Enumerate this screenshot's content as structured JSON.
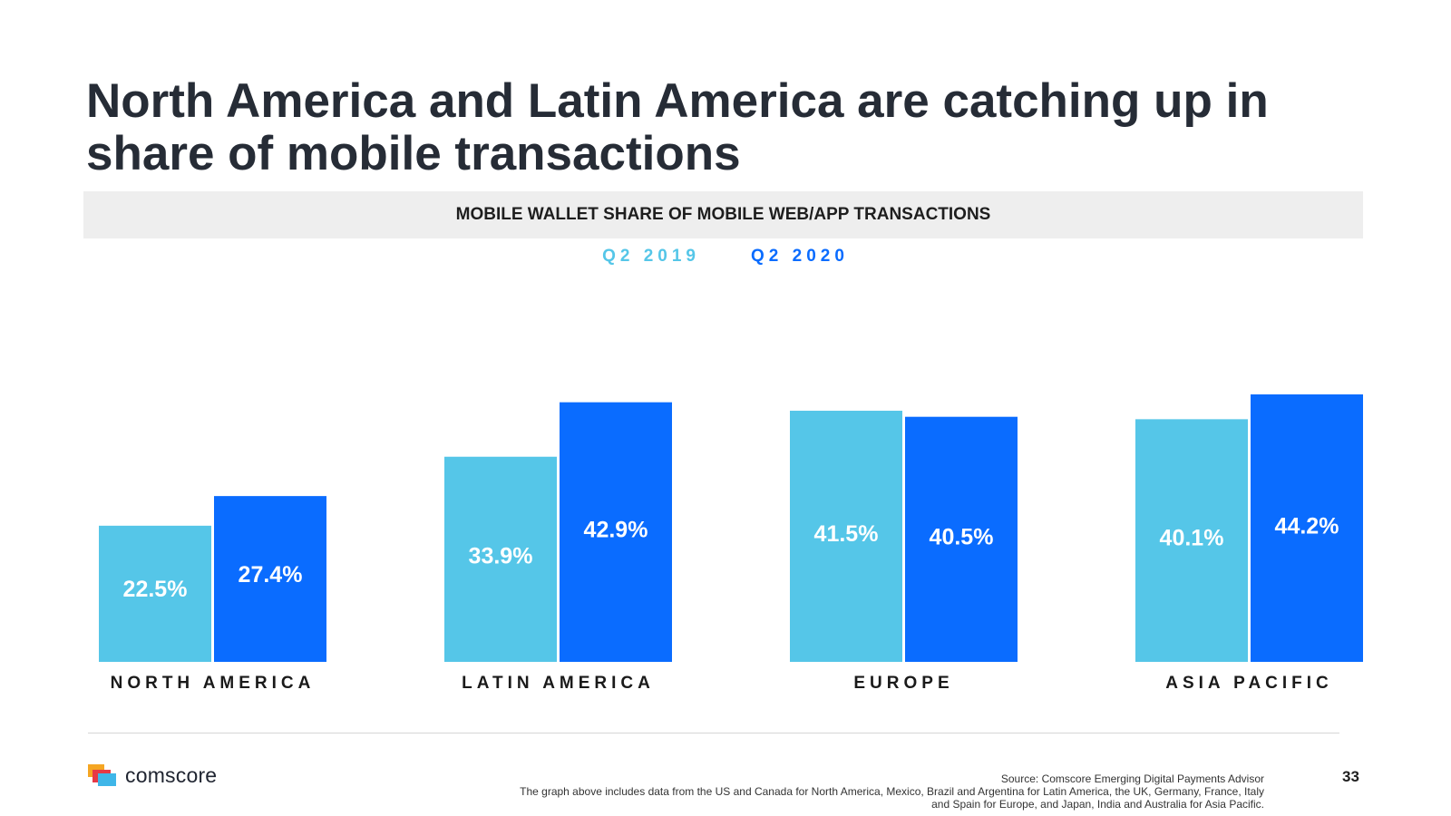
{
  "slide": {
    "headline": "North America and Latin America are catching up in share of mobile transactions",
    "page_number": "33"
  },
  "legend": {
    "q2_2019": "Q2 2019",
    "q2_2020": "Q2 2020"
  },
  "footer": {
    "brand": "comscore",
    "source": "Source: Comscore Emerging Digital Payments Advisor",
    "note_line1": "The graph above includes data from the US and Canada for North America, Mexico, Brazil and Argentina for Latin America, the UK, Germany, France, Italy",
    "note_line2": "and Spain for Europe, and Japan, India and Australia for Asia Pacific."
  },
  "colors": {
    "q2_2019": "#55c6e8",
    "q2_2020": "#0a6cff",
    "headline": "#262c36",
    "banner": "#eeeeee"
  },
  "icons": {
    "logo": "comscore-logo-icon"
  },
  "chart_data": {
    "type": "bar",
    "title": "MOBILE WALLET SHARE OF MOBILE WEB/APP TRANSACTIONS",
    "categories": [
      "NORTH AMERICA",
      "LATIN AMERICA",
      "EUROPE",
      "ASIA PACIFIC"
    ],
    "series": [
      {
        "name": "Q2 2019",
        "values": [
          22.5,
          33.9,
          41.5,
          40.1
        ],
        "labels": [
          "22.5%",
          "33.9%",
          "41.5%",
          "40.1%"
        ]
      },
      {
        "name": "Q2 2020",
        "values": [
          27.4,
          42.9,
          40.5,
          44.2
        ],
        "labels": [
          "27.4%",
          "42.9%",
          "40.5%",
          "44.2%"
        ]
      }
    ],
    "ylim": [
      0,
      44.2
    ],
    "xlabel": "",
    "ylabel": "",
    "grid": false,
    "legend_position": "top-center",
    "value_labels": "inside bars"
  }
}
